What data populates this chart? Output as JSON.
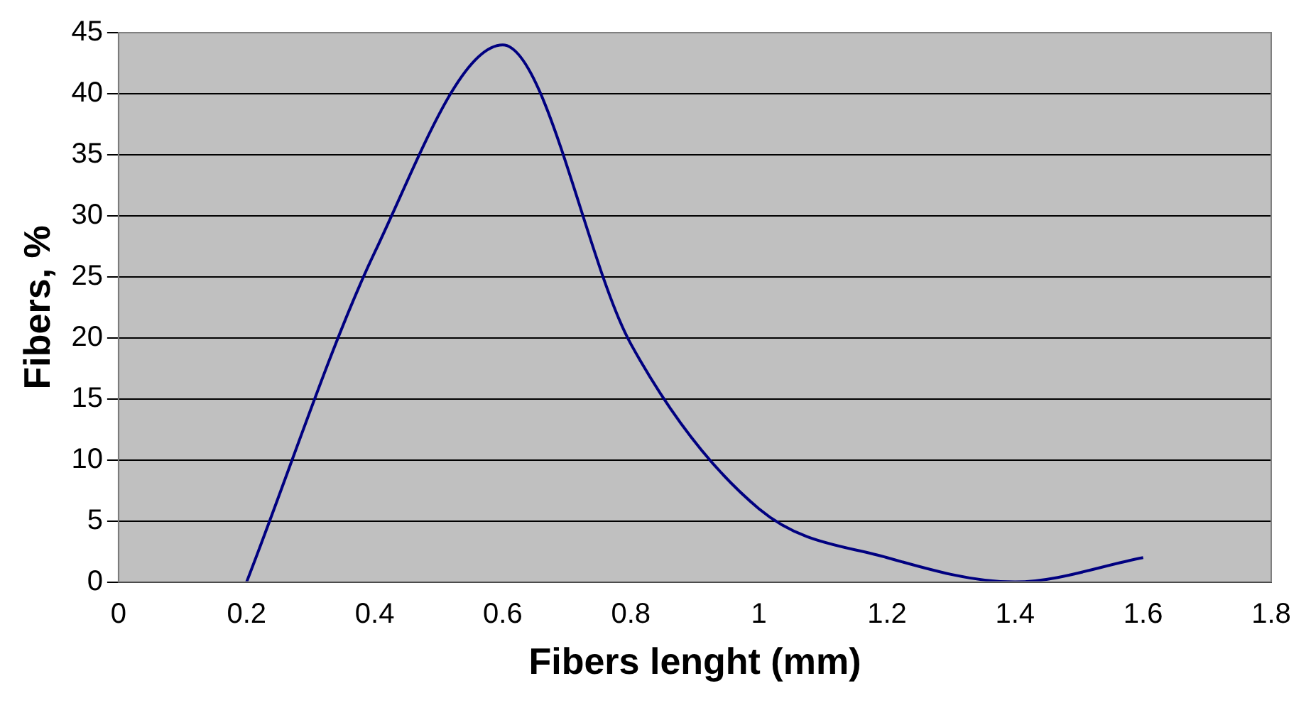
{
  "chart_data": {
    "type": "line",
    "xlabel": "Fibers lenght (mm)",
    "ylabel": "Fibers, %",
    "x": [
      0.2,
      0.4,
      0.6,
      0.8,
      1.0,
      1.2,
      1.4,
      1.6
    ],
    "series": [
      {
        "color": "#000080",
        "values": [
          0,
          27,
          44,
          19.5,
          6,
          2,
          0,
          2
        ]
      }
    ],
    "xlim": [
      0,
      1.8
    ],
    "xticks": [
      0,
      0.2,
      0.4,
      0.6,
      0.8,
      1,
      1.2,
      1.4,
      1.6,
      1.8
    ],
    "ylim": [
      0,
      45
    ],
    "yticks": [
      0,
      5,
      10,
      15,
      20,
      25,
      30,
      35,
      40,
      45
    ],
    "grid": "y",
    "legend": false,
    "marker": "none",
    "line_style": "solid"
  }
}
